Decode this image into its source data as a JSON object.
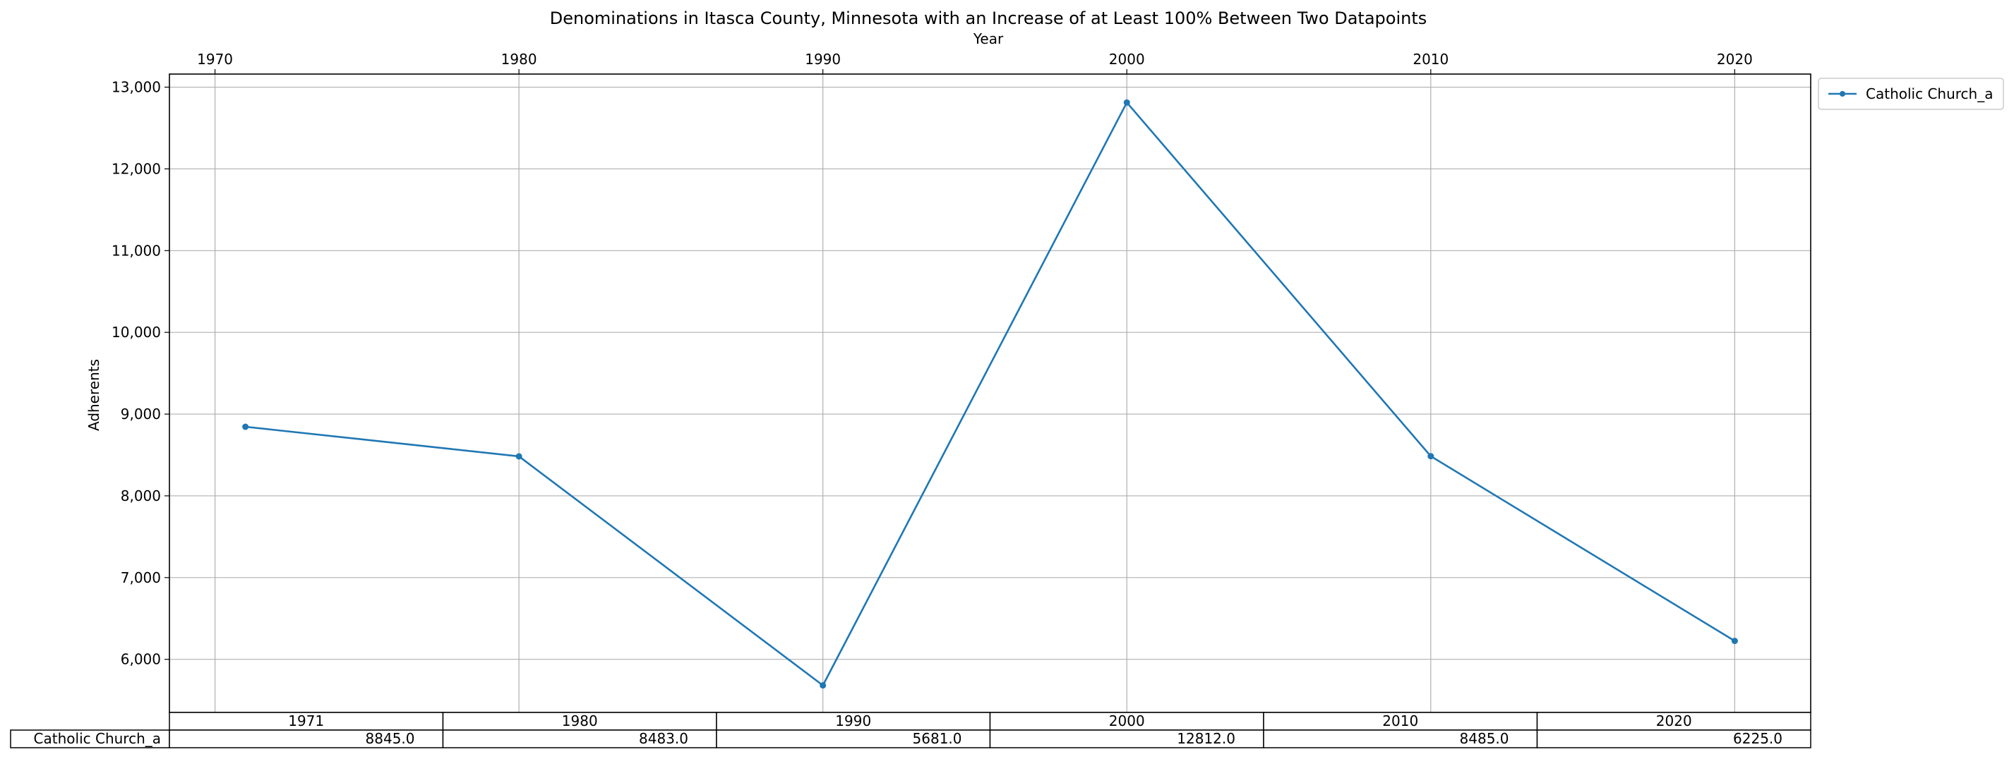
{
  "chart_data": {
    "type": "line",
    "title": "Denominations in Itasca County, Minnesota with an Increase of at Least 100% Between Two Datapoints",
    "xlabel": "Year",
    "ylabel": "Adherents",
    "x": [
      1971,
      1980,
      1990,
      2000,
      2010,
      2020
    ],
    "x_ticks": [
      "1970",
      "1980",
      "1990",
      "2000",
      "2010",
      "2020"
    ],
    "x_tick_values": [
      1970,
      1980,
      1990,
      2000,
      2010,
      2020
    ],
    "y_ticks": [
      "6,000",
      "7,000",
      "8,000",
      "9,000",
      "10,000",
      "11,000",
      "12,000",
      "13,000"
    ],
    "y_tick_values": [
      6000,
      7000,
      8000,
      9000,
      10000,
      11000,
      12000,
      13000
    ],
    "xlim": [
      1968.5,
      2022.5
    ],
    "ylim": [
      5350,
      13160
    ],
    "grid": true,
    "x_axis_position": "top",
    "legend_position": "outside-top-right",
    "series": [
      {
        "name": "Catholic Church_a",
        "color": "#1f77b4",
        "values": [
          8845,
          8483,
          5681,
          12812,
          8485,
          6225
        ]
      }
    ],
    "table": {
      "columns": [
        "1971",
        "1980",
        "1990",
        "2000",
        "2010",
        "2020"
      ],
      "rows": [
        {
          "label": "Catholic Church_a",
          "cells": [
            "8845.0",
            "8483.0",
            "5681.0",
            "12812.0",
            "8485.0",
            "6225.0"
          ]
        }
      ]
    }
  }
}
